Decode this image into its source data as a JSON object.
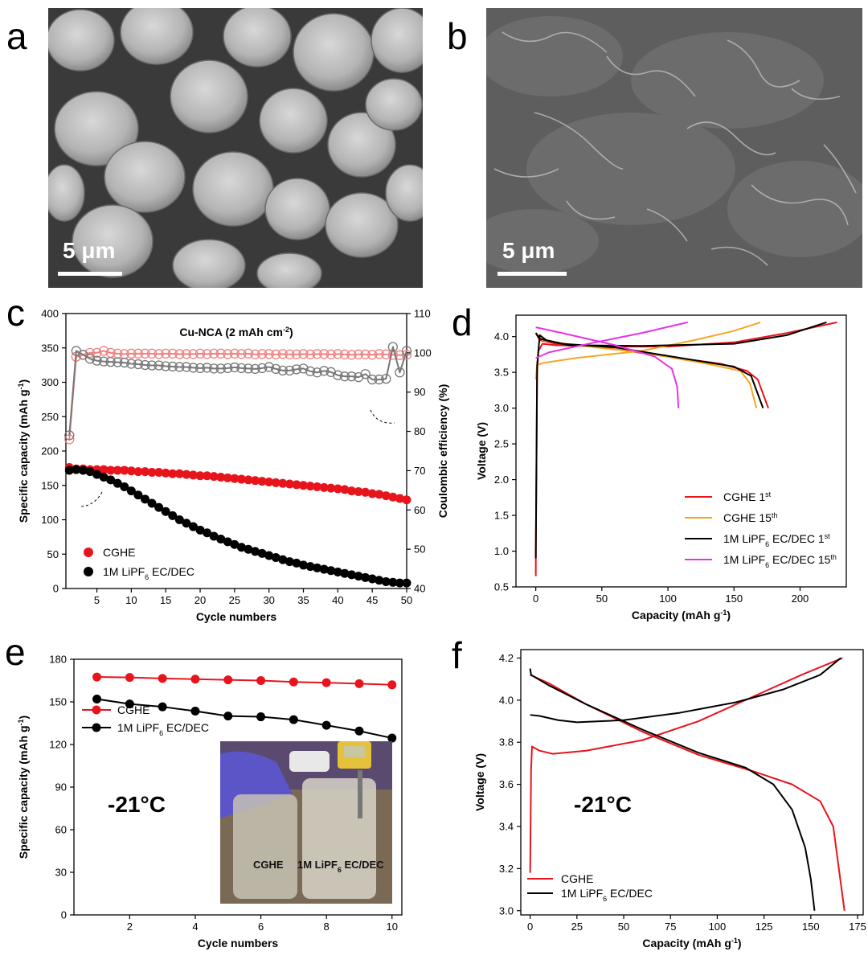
{
  "panels": {
    "a": {
      "letter": "a",
      "scalebar": "5 μm"
    },
    "b": {
      "letter": "b",
      "scalebar": "5 μm"
    },
    "c": {
      "letter": "c"
    },
    "d": {
      "letter": "d"
    },
    "e": {
      "letter": "e"
    },
    "f": {
      "letter": "f"
    }
  },
  "colors": {
    "cghe": "#e8141c",
    "cghe_light": "#f08080",
    "ref": "#000000",
    "ref_light": "#777777",
    "orange": "#f5a623",
    "magenta": "#e633e6"
  },
  "chart_data": [
    {
      "id": "c",
      "type": "scatter",
      "title": "Cu-NCA (2 mAh cm⁻²)",
      "xlabel": "Cycle numbers",
      "ylabel": "Specific capacity (mAh g⁻¹)",
      "y2label": "Coulombic efficiency (%)",
      "xlim": [
        0.5,
        50
      ],
      "ylim": [
        0,
        400
      ],
      "y2lim": [
        40,
        110
      ],
      "xticks": [
        5,
        10,
        15,
        20,
        25,
        30,
        35,
        40,
        45,
        50
      ],
      "yticks": [
        0,
        50,
        100,
        150,
        200,
        250,
        300,
        350,
        400
      ],
      "y2ticks": [
        40,
        50,
        60,
        70,
        80,
        90,
        100,
        110
      ],
      "legend": [
        "CGHE",
        "1M LiPF6 EC/DEC"
      ],
      "series": [
        {
          "name": "CGHE capacity",
          "axis": "left",
          "filled": true,
          "color": "#e8141c",
          "values": [
            176,
            174,
            174,
            173,
            173,
            173,
            172,
            172,
            172,
            171,
            170,
            170,
            169,
            169,
            168,
            167,
            167,
            166,
            165,
            164,
            164,
            163,
            162,
            161,
            160,
            159,
            158,
            157,
            156,
            155,
            154,
            153,
            152,
            151,
            150,
            149,
            148,
            147,
            146,
            145,
            144,
            142,
            141,
            140,
            138,
            137,
            135,
            133,
            131,
            129
          ]
        },
        {
          "name": "1M LiPF6 EC/DEC capacity",
          "axis": "left",
          "filled": true,
          "color": "#000000",
          "values": [
            172,
            173,
            172,
            170,
            166,
            162,
            158,
            153,
            148,
            142,
            136,
            130,
            124,
            118,
            112,
            106,
            100,
            95,
            90,
            85,
            81,
            76,
            72,
            68,
            64,
            60,
            57,
            54,
            51,
            48,
            45,
            42,
            39,
            37,
            34,
            32,
            30,
            28,
            26,
            24,
            22,
            20,
            18,
            16,
            14,
            12,
            10,
            9,
            8,
            8
          ]
        },
        {
          "name": "CGHE CE",
          "axis": "right",
          "filled": false,
          "color": "#f08080",
          "values": [
            78,
            99,
            99.5,
            100,
            100,
            100.5,
            100,
            99.8,
            99.7,
            99.8,
            99.8,
            99.8,
            99.8,
            99.7,
            99.8,
            99.8,
            99.7,
            99.7,
            99.7,
            99.8,
            99.7,
            99.8,
            99.8,
            99.7,
            99.8,
            99.7,
            99.8,
            99.6,
            99.7,
            99.7,
            99.6,
            99.7,
            99.6,
            99.6,
            99.7,
            99.6,
            99.7,
            99.7,
            99.6,
            99.7,
            99.6,
            99.5,
            99.6,
            99.6,
            99.5,
            99.7,
            99.6,
            99.5,
            99.4,
            99.5
          ]
        },
        {
          "name": "1M LiPF6 EC/DEC CE",
          "axis": "right",
          "filled": false,
          "color": "#777777",
          "values": [
            79,
            100.5,
            99.5,
            98.5,
            98,
            97.8,
            97.7,
            97.6,
            97.5,
            97.2,
            97.1,
            96.9,
            96.8,
            96.8,
            96.6,
            96.5,
            96.4,
            96.4,
            96.2,
            96.1,
            96.2,
            96.0,
            96.0,
            96.1,
            96.3,
            96.1,
            96.0,
            95.9,
            96.1,
            96.4,
            95.9,
            95.5,
            95.5,
            95.8,
            96.0,
            95.3,
            95.0,
            95.4,
            95.1,
            94.3,
            94.0,
            94.0,
            93.8,
            94.6,
            93.2,
            93.2,
            93.4,
            101.5,
            95,
            100.5
          ]
        }
      ]
    },
    {
      "id": "d",
      "type": "line",
      "xlabel": "Capacity (mAh g⁻¹)",
      "ylabel": "Voltage (V)",
      "xlim": [
        -15,
        235
      ],
      "ylim": [
        0.5,
        4.3
      ],
      "xticks": [
        0,
        50,
        100,
        150,
        200
      ],
      "yticks": [
        0.5,
        1.0,
        1.5,
        2.0,
        2.5,
        3.0,
        3.5,
        4.0
      ],
      "legend": [
        "CGHE 1st",
        "CGHE 15th",
        "1M LiPF6 EC/DEC 1st",
        "1M LiPF6 EC/DEC 15th"
      ],
      "series": [
        {
          "name": "CGHE 1st charge",
          "color": "#e8141c",
          "points": [
            [
              0,
              0.65
            ],
            [
              0,
              1.0
            ],
            [
              1,
              3.5
            ],
            [
              2,
              3.8
            ],
            [
              5,
              3.9
            ],
            [
              15,
              3.88
            ],
            [
              50,
              3.86
            ],
            [
              100,
              3.86
            ],
            [
              150,
              3.92
            ],
            [
              190,
              4.05
            ],
            [
              228,
              4.2
            ]
          ]
        },
        {
          "name": "CGHE 1st discharge",
          "color": "#e8141c",
          "points": [
            [
              0,
              4.05
            ],
            [
              3,
              3.95
            ],
            [
              15,
              3.9
            ],
            [
              50,
              3.85
            ],
            [
              100,
              3.72
            ],
            [
              140,
              3.62
            ],
            [
              160,
              3.52
            ],
            [
              168,
              3.4
            ],
            [
              172,
              3.2
            ],
            [
              176,
              3.0
            ]
          ]
        },
        {
          "name": "CGHE 15th charge",
          "color": "#f5a623",
          "points": [
            [
              0,
              3.4
            ],
            [
              1,
              3.6
            ],
            [
              5,
              3.63
            ],
            [
              30,
              3.7
            ],
            [
              80,
              3.8
            ],
            [
              120,
              3.95
            ],
            [
              150,
              4.08
            ],
            [
              170,
              4.2
            ]
          ]
        },
        {
          "name": "CGHE 15th discharge",
          "color": "#f5a623",
          "points": [
            [
              0,
              4.05
            ],
            [
              5,
              3.95
            ],
            [
              30,
              3.88
            ],
            [
              80,
              3.78
            ],
            [
              130,
              3.62
            ],
            [
              155,
              3.52
            ],
            [
              162,
              3.35
            ],
            [
              167,
              3.0
            ]
          ]
        },
        {
          "name": "1M 1st charge",
          "color": "#000000",
          "points": [
            [
              0,
              0.9
            ],
            [
              1,
              3.6
            ],
            [
              3,
              4.02
            ],
            [
              8,
              3.95
            ],
            [
              25,
              3.88
            ],
            [
              80,
              3.87
            ],
            [
              150,
              3.9
            ],
            [
              190,
              4.02
            ],
            [
              220,
              4.2
            ]
          ]
        },
        {
          "name": "1M 1st discharge",
          "color": "#000000",
          "points": [
            [
              0,
              4.05
            ],
            [
              3,
              3.97
            ],
            [
              20,
              3.9
            ],
            [
              60,
              3.85
            ],
            [
              110,
              3.7
            ],
            [
              150,
              3.58
            ],
            [
              163,
              3.45
            ],
            [
              168,
              3.2
            ],
            [
              172,
              3.0
            ]
          ]
        },
        {
          "name": "1M 15th charge",
          "color": "#e633e6",
          "points": [
            [
              0,
              3.7
            ],
            [
              10,
              3.78
            ],
            [
              40,
              3.9
            ],
            [
              80,
              4.05
            ],
            [
              115,
              4.2
            ]
          ]
        },
        {
          "name": "1M 15th discharge",
          "color": "#e633e6",
          "points": [
            [
              0,
              4.13
            ],
            [
              20,
              4.05
            ],
            [
              60,
              3.88
            ],
            [
              90,
              3.72
            ],
            [
              103,
              3.55
            ],
            [
              107,
              3.3
            ],
            [
              108,
              3.0
            ]
          ]
        }
      ]
    },
    {
      "id": "e",
      "type": "line",
      "xlabel": "Cycle numbers",
      "ylabel": "Specific capacity (mAh g⁻¹)",
      "xlim": [
        0.3,
        10.3
      ],
      "ylim": [
        0,
        180
      ],
      "xticks": [
        2,
        4,
        6,
        8,
        10
      ],
      "yticks": [
        0,
        30,
        60,
        90,
        120,
        150,
        180
      ],
      "annotation": "-21°C",
      "inset_labels": [
        "CGHE",
        "1M LiPF6 EC/DEC"
      ],
      "legend": [
        "CGHE",
        "1M LiPF6 EC/DEC"
      ],
      "series": [
        {
          "name": "CGHE",
          "color": "#e8141c",
          "x": [
            1,
            2,
            3,
            4,
            5,
            6,
            7,
            8,
            9,
            10
          ],
          "values": [
            167.5,
            167.2,
            166.5,
            166.0,
            165.5,
            165.0,
            164.0,
            163.5,
            162.8,
            162.0
          ]
        },
        {
          "name": "1M LiPF6 EC/DEC",
          "color": "#000000",
          "x": [
            1,
            2,
            3,
            4,
            5,
            6,
            7,
            8,
            9,
            10
          ],
          "values": [
            152,
            148.5,
            146.5,
            143.5,
            140,
            139.5,
            137.5,
            133.5,
            129.5,
            124.5
          ]
        }
      ]
    },
    {
      "id": "f",
      "type": "line",
      "xlabel": "Capacity (mAh g⁻¹)",
      "ylabel": "Voltage (V)",
      "xlim": [
        -5,
        178
      ],
      "ylim": [
        2.98,
        4.24
      ],
      "xticks": [
        0,
        25,
        50,
        75,
        100,
        125,
        150,
        175
      ],
      "yticks": [
        3.0,
        3.2,
        3.4,
        3.6,
        3.8,
        4.0,
        4.2
      ],
      "annotation": "-21°C",
      "legend": [
        "CGHE",
        "1M LiPF6 EC/DEC"
      ],
      "series": [
        {
          "name": "CGHE charge",
          "color": "#e8141c",
          "points": [
            [
              0,
              3.18
            ],
            [
              0.5,
              3.67
            ],
            [
              1,
              3.78
            ],
            [
              5,
              3.76
            ],
            [
              12,
              3.745
            ],
            [
              30,
              3.76
            ],
            [
              60,
              3.81
            ],
            [
              90,
              3.9
            ],
            [
              120,
              4.02
            ],
            [
              145,
              4.12
            ],
            [
              167,
              4.2
            ]
          ]
        },
        {
          "name": "CGHE discharge",
          "color": "#e8141c",
          "points": [
            [
              0,
              4.12
            ],
            [
              10,
              4.08
            ],
            [
              30,
              3.98
            ],
            [
              60,
              3.85
            ],
            [
              90,
              3.74
            ],
            [
              120,
              3.66
            ],
            [
              140,
              3.6
            ],
            [
              155,
              3.52
            ],
            [
              162,
              3.4
            ],
            [
              165,
              3.2
            ],
            [
              168,
              3.0
            ]
          ]
        },
        {
          "name": "1M charge",
          "color": "#000000",
          "points": [
            [
              0,
              3.93
            ],
            [
              5,
              3.925
            ],
            [
              15,
              3.905
            ],
            [
              25,
              3.895
            ],
            [
              50,
              3.905
            ],
            [
              80,
              3.94
            ],
            [
              110,
              3.99
            ],
            [
              135,
              4.05
            ],
            [
              155,
              4.12
            ],
            [
              166,
              4.2
            ]
          ]
        },
        {
          "name": "1M discharge",
          "color": "#000000",
          "points": [
            [
              0,
              4.15
            ],
            [
              0.5,
              4.12
            ],
            [
              10,
              4.07
            ],
            [
              30,
              3.98
            ],
            [
              60,
              3.86
            ],
            [
              90,
              3.75
            ],
            [
              115,
              3.68
            ],
            [
              130,
              3.6
            ],
            [
              140,
              3.48
            ],
            [
              147,
              3.3
            ],
            [
              150,
              3.15
            ],
            [
              152,
              3.0
            ]
          ]
        }
      ]
    }
  ]
}
